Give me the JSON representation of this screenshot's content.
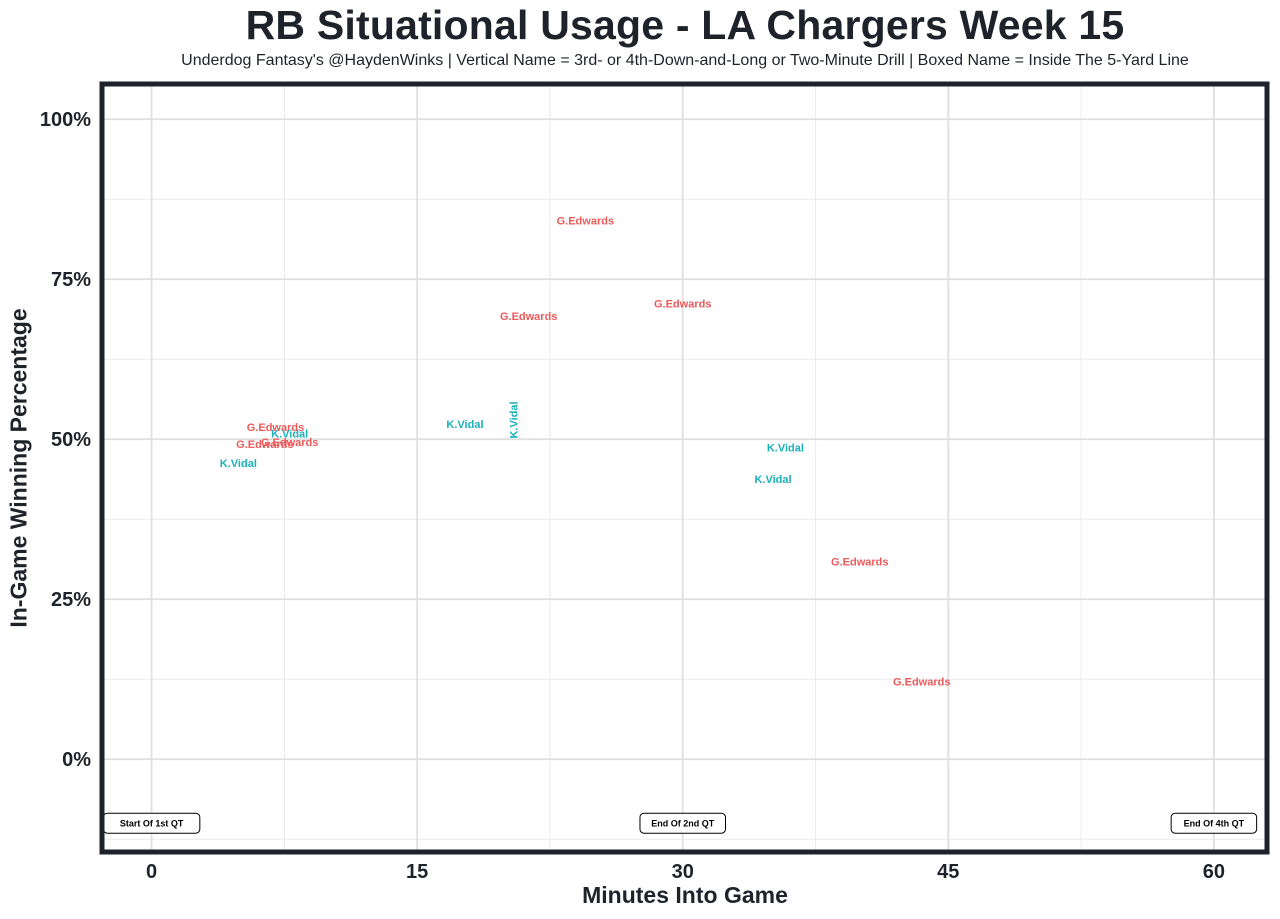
{
  "chart_data": {
    "type": "scatter",
    "title": "RB Situational Usage - LA Chargers Week 15",
    "subtitle": "Underdog Fantasy's @HaydenWinks | Vertical Name = 3rd- or 4th-Down-and-Long or Two-Minute Drill | Boxed Name = Inside The 5-Yard Line",
    "xlabel": "Minutes Into Game",
    "ylabel": "In-Game Winning Percentage",
    "xlim": [
      -2.8,
      63
    ],
    "ylim": [
      -0.145,
      1.055
    ],
    "x_ticks": [
      0,
      15,
      30,
      45,
      60
    ],
    "x_tick_labels": [
      "0",
      "15",
      "30",
      "45",
      "60"
    ],
    "y_ticks": [
      0,
      0.25,
      0.5,
      0.75,
      1.0
    ],
    "y_tick_labels": [
      "0%",
      "25%",
      "50%",
      "75%",
      "100%"
    ],
    "grid": true,
    "legend": "none",
    "colors": {
      "G.Edwards": "#ee5a5a",
      "K.Vidal": "#1ab0b8"
    },
    "points": [
      {
        "player": "G.Edwards",
        "x": 24.5,
        "y": 0.84,
        "vertical": false
      },
      {
        "player": "G.Edwards",
        "x": 21.3,
        "y": 0.691,
        "vertical": false
      },
      {
        "player": "G.Edwards",
        "x": 30.0,
        "y": 0.71,
        "vertical": false
      },
      {
        "player": "G.Edwards",
        "x": 7.0,
        "y": 0.517,
        "vertical": false
      },
      {
        "player": "G.Edwards",
        "x": 6.4,
        "y": 0.491,
        "vertical": false
      },
      {
        "player": "G.Edwards",
        "x": 7.8,
        "y": 0.494,
        "vertical": false
      },
      {
        "player": "K.Vidal",
        "x": 7.8,
        "y": 0.507,
        "vertical": false
      },
      {
        "player": "K.Vidal",
        "x": 4.9,
        "y": 0.461,
        "vertical": false
      },
      {
        "player": "K.Vidal",
        "x": 17.7,
        "y": 0.522,
        "vertical": false
      },
      {
        "player": "K.Vidal",
        "x": 20.5,
        "y": 0.53,
        "vertical": true
      },
      {
        "player": "K.Vidal",
        "x": 35.8,
        "y": 0.485,
        "vertical": false
      },
      {
        "player": "K.Vidal",
        "x": 35.1,
        "y": 0.436,
        "vertical": false
      },
      {
        "player": "G.Edwards",
        "x": 40.0,
        "y": 0.307,
        "vertical": false
      },
      {
        "player": "G.Edwards",
        "x": 43.5,
        "y": 0.12,
        "vertical": false
      }
    ],
    "quarter_markers": [
      {
        "label": "Start Of 1st QT",
        "x": 0,
        "y": -0.1
      },
      {
        "label": "End Of 2nd QT",
        "x": 30,
        "y": -0.1
      },
      {
        "label": "End Of 4th QT",
        "x": 60,
        "y": -0.1
      }
    ]
  }
}
